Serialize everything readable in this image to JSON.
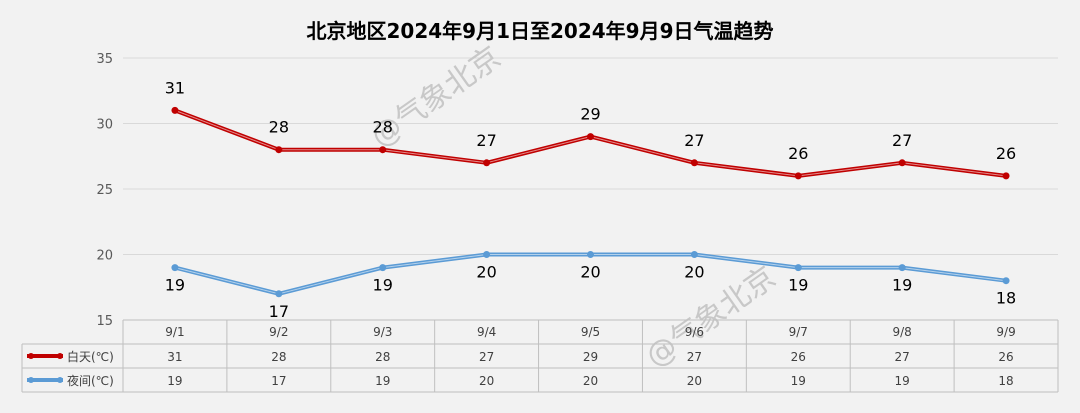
{
  "chart_data": {
    "type": "line",
    "title": "北京地区2024年9月1日至2024年9月9日气温趋势",
    "categories": [
      "9/1",
      "9/2",
      "9/3",
      "9/4",
      "9/5",
      "9/6",
      "9/7",
      "9/8",
      "9/9"
    ],
    "series": [
      {
        "name": "白天(℃)",
        "values": [
          31,
          28,
          28,
          27,
          29,
          27,
          26,
          27,
          26
        ],
        "color": "#c00000"
      },
      {
        "name": "夜间(℃)",
        "values": [
          19,
          17,
          19,
          20,
          20,
          20,
          19,
          19,
          18
        ],
        "color": "#5b9bd5"
      }
    ],
    "ylim": [
      15,
      35
    ],
    "yticks": [
      15,
      20,
      25,
      30,
      35
    ],
    "grid": true,
    "legend": "data-table",
    "watermark": "@气象北京"
  }
}
